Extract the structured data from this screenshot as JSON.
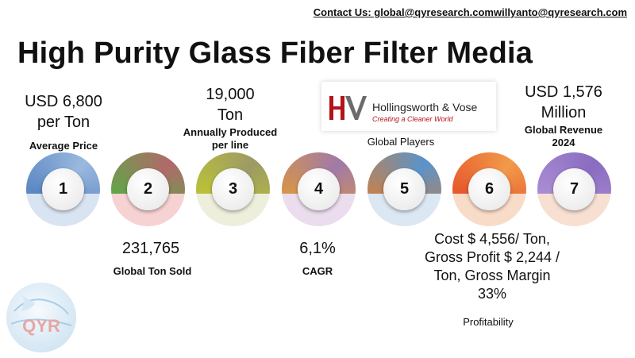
{
  "contact": {
    "text": "Contact Us: global@qyresearch.comwillyanto@qyresearch.com"
  },
  "title": "High Purity Glass Fiber Filter Media",
  "metrics": {
    "avg_price": {
      "value_line1": "USD 6,800",
      "value_line2": "per Ton",
      "label": "Average Price"
    },
    "annual_production": {
      "value_line1": "19,000",
      "value_line2": "Ton",
      "label_line1": "Annually Produced",
      "label_line2": "per line"
    },
    "tons_sold": {
      "value": "231,765",
      "label": "Global Ton Sold"
    },
    "cagr": {
      "value": "6,1%",
      "label": "CAGR"
    },
    "players": {
      "label": "Global Players",
      "logo_name": "Hollingsworth & Vose",
      "logo_tagline": "Creating a Cleaner World"
    },
    "profitability": {
      "line1": "Cost $ 4,556/ Ton,",
      "line2": "Gross Profit $ 2,244 /",
      "line3": "Ton, Gross Margin",
      "line4": "33%",
      "label": "Profitability"
    },
    "revenue": {
      "value_line1": "USD 1,576",
      "value_line2": "Million",
      "label_line1": "Global Revenue",
      "label_line2": "2024"
    }
  },
  "dials": [
    {
      "number": "1",
      "color_a": "#3c6fb4",
      "color_b": "#9bb9df",
      "base": "#d9e4f3"
    },
    {
      "number": "2",
      "color_a": "#3fbf3a",
      "color_b": "#b06a6a",
      "base": "#f6d2d2"
    },
    {
      "number": "3",
      "color_a": "#c9d323",
      "color_b": "#9c9a66",
      "base": "#eeeedd"
    },
    {
      "number": "4",
      "color_a": "#f0a020",
      "color_b": "#a07aa8",
      "base": "#ebdcee"
    },
    {
      "number": "5",
      "color_a": "#ee7a1c",
      "color_b": "#5a93c9",
      "base": "#dbe7f3"
    },
    {
      "number": "6",
      "color_a": "#e03a1e",
      "color_b": "#f29a4a",
      "base": "#f9dcc8"
    },
    {
      "number": "7",
      "color_a": "#b79bdc",
      "color_b": "#8a6cc0",
      "base": "#f7e0d2"
    }
  ],
  "watermark": {
    "text": "QYR"
  }
}
